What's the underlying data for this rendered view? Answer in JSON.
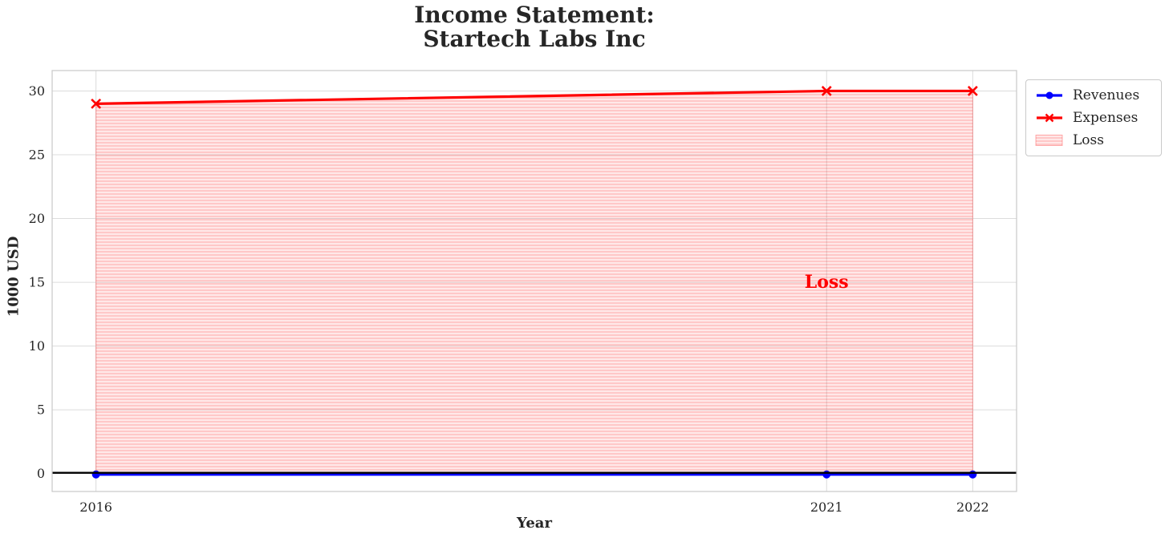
{
  "title": "Income Statement:\nStartech Labs Inc",
  "chart_data": {
    "type": "line",
    "title": "Income Statement: Startech Labs Inc",
    "xlabel": "Year",
    "ylabel": "1000 USD",
    "x": [
      2016,
      2021,
      2022
    ],
    "series": [
      {
        "name": "Revenues",
        "color": "#0000ff",
        "marker": "circle",
        "values": [
          0,
          0,
          0
        ]
      },
      {
        "name": "Expenses",
        "color": "#ff0000",
        "marker": "x",
        "values": [
          29,
          30,
          30
        ]
      }
    ],
    "area": {
      "label": "Loss",
      "between": [
        "Expenses",
        "Revenues"
      ],
      "fill_color": "#ff0000",
      "fill_alpha": 0.12,
      "hatch": "horizontal"
    },
    "annotations": [
      {
        "text": "Loss",
        "x": 2021,
        "y": 15,
        "color": "#ff0000",
        "bold": true
      }
    ],
    "xticks": [
      2016,
      2021,
      2022
    ],
    "yticks": [
      0,
      5,
      10,
      15,
      20,
      25,
      30
    ],
    "xlim": [
      2015.7,
      2022.3
    ],
    "ylim": [
      -1.4,
      31.6
    ],
    "grid": true,
    "zero_line": true,
    "legend_position": "upper right outside",
    "colors": {
      "grid": "#dcdcdc",
      "spine": "#c8c8c8",
      "text": "#262626",
      "zero_line": "#000000"
    }
  }
}
